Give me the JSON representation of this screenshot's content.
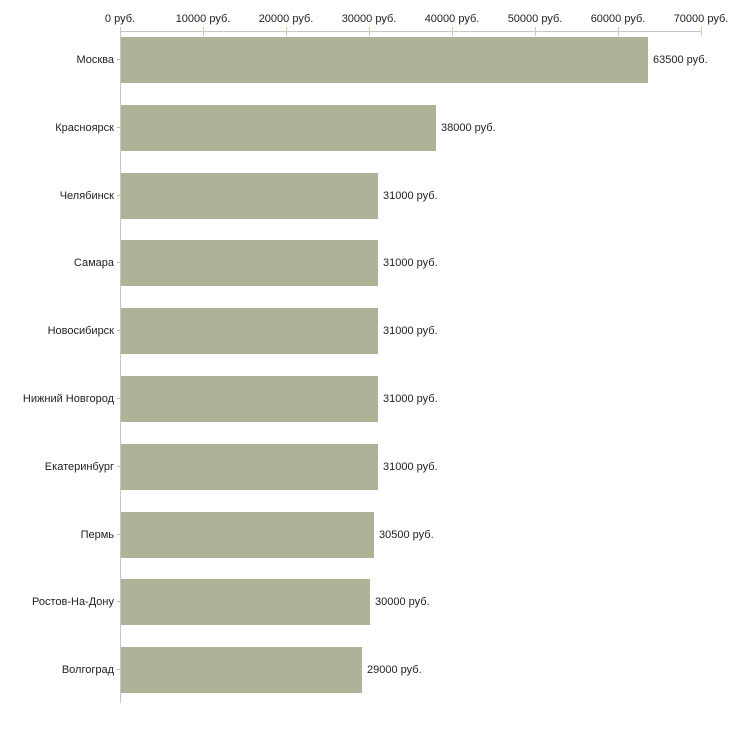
{
  "chart_data": {
    "type": "bar",
    "orientation": "horizontal",
    "title": "",
    "xlabel": "",
    "ylabel": "",
    "unit": "руб.",
    "categories": [
      "Москва",
      "Красноярск",
      "Челябинск",
      "Самара",
      "Новосибирск",
      "Нижний Новгород",
      "Екатеринбург",
      "Пермь",
      "Ростов-На-Дону",
      "Волгоград"
    ],
    "values": [
      63500,
      38000,
      31000,
      31000,
      31000,
      31000,
      31000,
      30500,
      30000,
      29000
    ],
    "value_labels": [
      "63500 руб.",
      "38000 руб.",
      "31000 руб.",
      "31000 руб.",
      "31000 руб.",
      "31000 руб.",
      "31000 руб.",
      "30500 руб.",
      "30000 руб.",
      "29000 руб."
    ],
    "xlim": [
      0,
      70000
    ],
    "x_ticks": [
      0,
      10000,
      20000,
      30000,
      40000,
      50000,
      60000,
      70000
    ],
    "x_tick_labels": [
      "0 руб.",
      "10000 руб.",
      "20000 руб.",
      "30000 руб.",
      "40000 руб.",
      "50000 руб.",
      "60000 руб.",
      "70000 руб."
    ],
    "grid": false,
    "legend": null,
    "axis_position": "top",
    "colors": {
      "bar": "#adb396",
      "axis_line": "#c6c6c6",
      "x_tick": "#cdcda0",
      "category_tick": "#c0c0ad",
      "text": "#222222",
      "background": "#ffffff"
    }
  }
}
